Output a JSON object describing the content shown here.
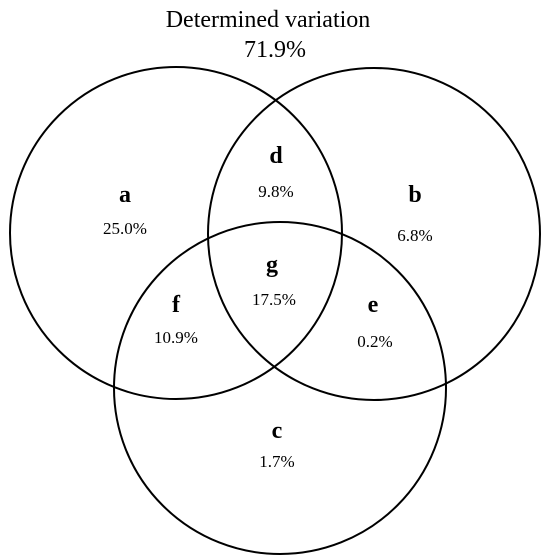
{
  "title": "Determined variation",
  "total": "71.9%",
  "regions": [
    {
      "letter": "a",
      "value": "25.0%"
    },
    {
      "letter": "b",
      "value": "6.8%"
    },
    {
      "letter": "c",
      "value": "1.7%"
    },
    {
      "letter": "d",
      "value": "9.8%"
    },
    {
      "letter": "e",
      "value": "0.2%"
    },
    {
      "letter": "f",
      "value": "10.9%"
    },
    {
      "letter": "g",
      "value": "17.5%"
    }
  ],
  "colors": {
    "stroke": "#000000",
    "text": "#000000",
    "background": "#ffffff"
  }
}
